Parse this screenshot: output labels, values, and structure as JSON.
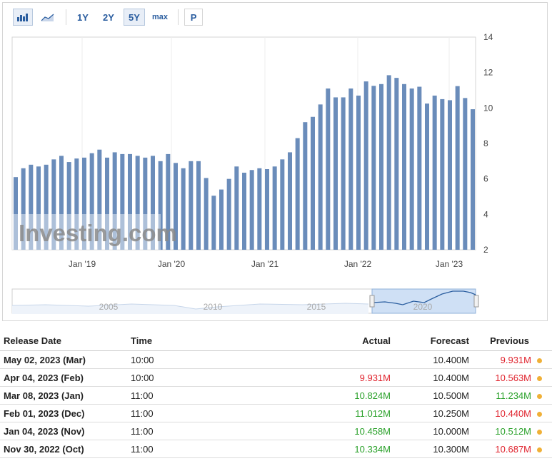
{
  "toolbar": {
    "ranges": [
      "1Y",
      "2Y",
      "5Y",
      "max"
    ],
    "active_range": "5Y",
    "p_label": "P"
  },
  "watermark": "Investing.com",
  "chart_data": {
    "type": "bar",
    "x_tick_labels": [
      "Jan '19",
      "Jan '20",
      "Jan '21",
      "Jan '22",
      "Jan '23"
    ],
    "ylim": [
      2,
      14
    ],
    "y_ticks": [
      2,
      4,
      6,
      8,
      10,
      12,
      14
    ],
    "values": [
      6.1,
      6.6,
      6.8,
      6.7,
      6.8,
      7.1,
      7.3,
      6.95,
      7.15,
      7.2,
      7.45,
      7.65,
      7.2,
      7.5,
      7.4,
      7.4,
      7.3,
      7.2,
      7.3,
      7.0,
      7.4,
      6.9,
      6.6,
      7.0,
      7.0,
      6.05,
      5.05,
      5.4,
      6.0,
      6.7,
      6.35,
      6.5,
      6.6,
      6.55,
      6.7,
      7.1,
      7.5,
      8.3,
      9.2,
      9.5,
      10.2,
      11.1,
      10.6,
      10.6,
      11.1,
      10.7,
      11.5,
      11.25,
      11.35,
      11.85,
      11.7,
      11.35,
      11.1,
      11.2,
      10.25,
      10.7,
      10.5,
      10.44,
      11.234,
      10.563,
      9.931
    ],
    "navigator_labels": [
      "2005",
      "2010",
      "2015",
      "2020"
    ]
  },
  "table": {
    "headers": {
      "date": "Release Date",
      "time": "Time",
      "actual": "Actual",
      "forecast": "Forecast",
      "previous": "Previous"
    },
    "rows": [
      {
        "date": "May 02, 2023 (Mar)",
        "time": "10:00",
        "actual": "",
        "actual_color": "",
        "forecast": "10.400M",
        "previous": "9.931M",
        "previous_color": "red"
      },
      {
        "date": "Apr 04, 2023 (Feb)",
        "time": "10:00",
        "actual": "9.931M",
        "actual_color": "red",
        "forecast": "10.400M",
        "previous": "10.563M",
        "previous_color": "red"
      },
      {
        "date": "Mar 08, 2023 (Jan)",
        "time": "11:00",
        "actual": "10.824M",
        "actual_color": "green",
        "forecast": "10.500M",
        "previous": "11.234M",
        "previous_color": "green"
      },
      {
        "date": "Feb 01, 2023 (Dec)",
        "time": "11:00",
        "actual": "11.012M",
        "actual_color": "green",
        "forecast": "10.250M",
        "previous": "10.440M",
        "previous_color": "red"
      },
      {
        "date": "Jan 04, 2023 (Nov)",
        "time": "11:00",
        "actual": "10.458M",
        "actual_color": "green",
        "forecast": "10.000M",
        "previous": "10.512M",
        "previous_color": "green"
      },
      {
        "date": "Nov 30, 2022 (Oct)",
        "time": "11:00",
        "actual": "10.334M",
        "actual_color": "green",
        "forecast": "10.300M",
        "previous": "10.687M",
        "previous_color": "red"
      }
    ]
  },
  "colors": {
    "bar": "#6a8cba",
    "bar_edge": "#4f72a4",
    "green": "#2aa12a",
    "red": "#e0242e"
  }
}
